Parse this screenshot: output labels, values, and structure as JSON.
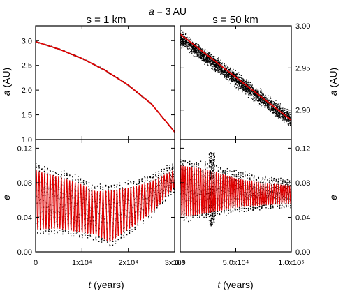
{
  "figure": {
    "title_math": "a",
    "title_rest": " = 3 AU",
    "column_titles": [
      "s = 1 km",
      "s = 50 km"
    ],
    "left_ylabels": [
      {
        "math": "a",
        "unit": " (AU)"
      },
      {
        "math": "e",
        "unit": ""
      }
    ],
    "right_ylabels": [
      {
        "math": "a",
        "unit": " (AU)"
      },
      {
        "math": "e",
        "unit": ""
      }
    ],
    "xlabels": [
      {
        "math": "t",
        "unit": " (years)"
      },
      {
        "math": "t",
        "unit": " (years)"
      }
    ],
    "colors": {
      "numerical": "#000000",
      "analytic": "#e00000"
    }
  },
  "chart_data": [
    {
      "id": "top-left",
      "type": "line",
      "xlim": [
        0,
        30000
      ],
      "ylim": [
        1.0,
        3.3
      ],
      "yticks": [
        "1.0",
        "1.5",
        "2.0",
        "2.5",
        "3.0"
      ],
      "ytick_values": [
        1.0,
        1.5,
        2.0,
        2.5,
        3.0
      ],
      "xtick_values": [
        0,
        10000,
        20000,
        30000
      ],
      "series": [
        {
          "style": "scatter-band",
          "x": [
            0,
            5000,
            10000,
            15000,
            20000,
            25000,
            30000
          ],
          "y": [
            2.98,
            2.83,
            2.64,
            2.4,
            2.1,
            1.72,
            1.15
          ],
          "spread": 0.015
        },
        {
          "style": "line",
          "x": [
            0,
            5000,
            10000,
            15000,
            20000,
            25000,
            30000
          ],
          "y": [
            2.98,
            2.83,
            2.64,
            2.4,
            2.1,
            1.72,
            1.15
          ]
        }
      ]
    },
    {
      "id": "top-right",
      "type": "line",
      "xlim": [
        0,
        100000
      ],
      "ylim": [
        2.865,
        3.0
      ],
      "yticks": [
        "2.90",
        "2.95",
        "3.00"
      ],
      "ytick_values": [
        2.9,
        2.95,
        3.0
      ],
      "xtick_values": [
        0,
        50000,
        100000
      ],
      "series": [
        {
          "style": "scatter-band",
          "x": [
            0,
            100000
          ],
          "y": [
            2.985,
            2.888
          ],
          "spread": 0.012
        },
        {
          "style": "line",
          "x": [
            0,
            100000
          ],
          "y": [
            2.99,
            2.888
          ]
        }
      ]
    },
    {
      "id": "bottom-left",
      "type": "line",
      "xlim": [
        0,
        30000
      ],
      "ylim": [
        0.0,
        0.13
      ],
      "yticks": [
        "0.00",
        "0.04",
        "0.08",
        "0.12"
      ],
      "ytick_values": [
        0.0,
        0.04,
        0.08,
        0.12
      ],
      "xticks": [
        "0",
        "1x10⁴",
        "2x10⁴",
        "3x10⁴"
      ],
      "xtick_values": [
        0,
        10000,
        20000,
        30000
      ],
      "series": [
        {
          "style": "oscillation",
          "x_mean": [
            0,
            5000,
            10000,
            13000,
            16000,
            20000,
            25000,
            30000
          ],
          "mean": [
            0.06,
            0.057,
            0.05,
            0.045,
            0.041,
            0.05,
            0.063,
            0.085
          ],
          "amp": [
            0.034,
            0.03,
            0.028,
            0.025,
            0.03,
            0.024,
            0.018,
            0.01
          ],
          "period": 600,
          "start": 0.1
        },
        {
          "style": "oscillation-line",
          "x_mean": [
            0,
            5000,
            10000,
            13000,
            16000,
            20000,
            25000,
            30000
          ],
          "mean": [
            0.06,
            0.057,
            0.05,
            0.045,
            0.041,
            0.05,
            0.063,
            0.085
          ],
          "amp": [
            0.034,
            0.03,
            0.028,
            0.025,
            0.03,
            0.024,
            0.018,
            0.01
          ],
          "period": 600,
          "start": 0.1
        }
      ]
    },
    {
      "id": "bottom-right",
      "type": "line",
      "xlim": [
        0,
        100000
      ],
      "ylim": [
        0.0,
        0.13
      ],
      "yticks": [
        "0.00",
        "0.04",
        "0.08",
        "0.12"
      ],
      "ytick_values": [
        0.0,
        0.04,
        0.08,
        0.12
      ],
      "xticks": [
        "0.0",
        "5.0x10⁴",
        "1.0x10⁵"
      ],
      "xtick_values": [
        0,
        50000,
        100000
      ],
      "series": [
        {
          "style": "oscillation",
          "x_mean": [
            0,
            25000,
            50000,
            75000,
            100000
          ],
          "mean": [
            0.07,
            0.07,
            0.068,
            0.067,
            0.066
          ],
          "amp": [
            0.03,
            0.025,
            0.017,
            0.012,
            0.01
          ],
          "period": 2000,
          "burst": {
            "x": [
              26000,
              31000
            ],
            "y": [
              0.03,
              0.115
            ]
          }
        },
        {
          "style": "oscillation-line",
          "x_mean": [
            0,
            25000,
            50000,
            75000,
            100000
          ],
          "mean": [
            0.07,
            0.07,
            0.068,
            0.067,
            0.066
          ],
          "amp": [
            0.03,
            0.025,
            0.017,
            0.012,
            0.01
          ],
          "period": 2000
        }
      ]
    }
  ]
}
